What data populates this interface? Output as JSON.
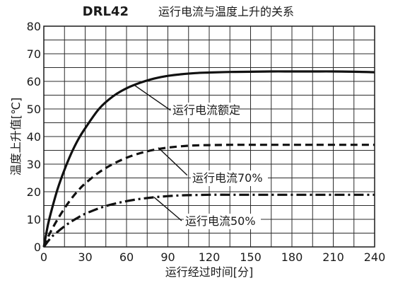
{
  "chart_data": {
    "type": "line",
    "title": "DRL42",
    "subtitle": "运行电流与温度上升的关系",
    "xlabel": "运行经过时间[分]",
    "ylabel": "温度上升值[℃]",
    "xlim": [
      0,
      240
    ],
    "ylim": [
      0,
      80
    ],
    "xticks": [
      "0",
      "30",
      "60",
      "90",
      "120",
      "150",
      "180",
      "210",
      "240"
    ],
    "yticks": [
      "0",
      "10",
      "20",
      "30",
      "40",
      "50",
      "60",
      "70",
      "80"
    ],
    "grid": true,
    "x": [
      0,
      3,
      6,
      10,
      15,
      20,
      25,
      30,
      40,
      50,
      60,
      70,
      80,
      90,
      100,
      110,
      120,
      135,
      150,
      165,
      180,
      195,
      210,
      225,
      240
    ],
    "series": [
      {
        "name": "运行电流额定",
        "style": "solid",
        "values": [
          0,
          8,
          14,
          21,
          28,
          34,
          39,
          43,
          50,
          54.5,
          57.5,
          59.5,
          61,
          62,
          62.6,
          63,
          63.2,
          63.4,
          63.5,
          63.6,
          63.6,
          63.6,
          63.6,
          63.5,
          63.3
        ]
      },
      {
        "name": "运行电流70%",
        "style": "dashed",
        "values": [
          0,
          3.5,
          6.5,
          10,
          14,
          17.5,
          20.5,
          23,
          27,
          30,
          32.3,
          34,
          35.2,
          36,
          36.5,
          36.8,
          36.9,
          37,
          37,
          37,
          37,
          37,
          37,
          37,
          37
        ]
      },
      {
        "name": "运行电流50%",
        "style": "dashdot",
        "values": [
          0,
          2,
          3.8,
          5.5,
          7.5,
          9.2,
          10.7,
          12,
          14,
          15.5,
          16.6,
          17.4,
          18,
          18.4,
          18.7,
          18.8,
          18.9,
          18.9,
          18.9,
          18.9,
          18.9,
          18.9,
          18.9,
          18.9,
          18.9
        ]
      }
    ]
  }
}
